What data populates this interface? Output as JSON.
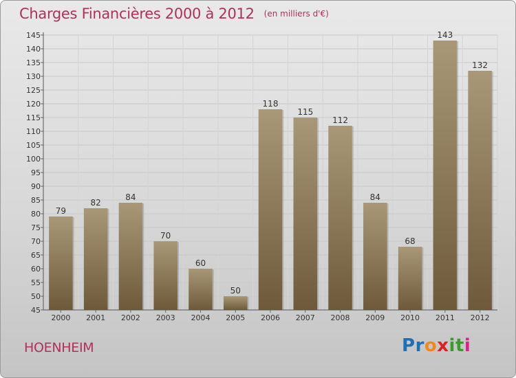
{
  "title": "Charges Financières 2000 à 2012",
  "unit": "(en milliers d'€)",
  "commune": "HOENHEIM",
  "logo": {
    "letters": [
      "P",
      "r",
      "o",
      "x",
      "i",
      "t",
      "i"
    ],
    "colors": [
      "#1f6fb6",
      "#1f6fb6",
      "#f08a1c",
      "#e02020",
      "#3a9d2a",
      "#3a9d2a",
      "#e0208a"
    ]
  },
  "colors": {
    "bar_top": "#a89878",
    "bar_bottom": "#6e5a3a",
    "title": "#b0305a"
  },
  "chart_data": {
    "type": "bar",
    "title": "Charges Financières 2000 à 2012",
    "categories": [
      "2000",
      "2001",
      "2002",
      "2003",
      "2004",
      "2005",
      "2006",
      "2007",
      "2008",
      "2009",
      "2010",
      "2011",
      "2012"
    ],
    "values": [
      79,
      82,
      84,
      70,
      60,
      50,
      118,
      115,
      112,
      84,
      68,
      143,
      132
    ],
    "ylim": [
      45,
      145
    ],
    "yticks": [
      45,
      50,
      55,
      60,
      65,
      70,
      75,
      80,
      85,
      90,
      95,
      100,
      105,
      110,
      115,
      120,
      125,
      130,
      135,
      140,
      145
    ],
    "grid": true,
    "xlabel": "",
    "ylabel": ""
  }
}
